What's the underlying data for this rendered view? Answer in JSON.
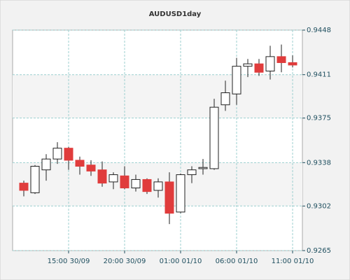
{
  "chart_data": {
    "type": "candlestick",
    "title": "AUDUSD1day",
    "categories": [
      null,
      null,
      null,
      null,
      "15:00 30/09",
      null,
      null,
      null,
      null,
      "20:00 30/09",
      null,
      null,
      null,
      null,
      "01:00 01/10",
      null,
      null,
      null,
      null,
      "06:00 01/10",
      null,
      null,
      null,
      null,
      "11:00 01/10"
    ],
    "open": [
      0.9321,
      0.9313,
      0.9332,
      0.9341,
      0.935,
      0.934,
      0.9336,
      0.9332,
      0.9322,
      0.9327,
      0.9317,
      0.9324,
      0.9315,
      0.9322,
      0.9297,
      0.9328,
      0.9333,
      0.9333,
      0.9386,
      0.9395,
      0.9418,
      0.942,
      0.9414,
      0.9426,
      0.9421
    ],
    "high": [
      0.9323,
      0.9336,
      0.9345,
      0.9355,
      0.9351,
      0.9343,
      0.934,
      0.9339,
      0.933,
      0.9335,
      0.9328,
      0.9325,
      0.9325,
      0.933,
      0.9329,
      0.9335,
      0.9341,
      0.9391,
      0.9406,
      0.9425,
      0.9424,
      0.9424,
      0.9435,
      0.9436,
      0.9427
    ],
    "low": [
      0.931,
      0.9312,
      0.9323,
      0.9337,
      0.9332,
      0.9328,
      0.9327,
      0.9318,
      0.9316,
      0.9316,
      0.9314,
      0.9312,
      0.9309,
      0.9287,
      0.9296,
      0.9321,
      0.9328,
      0.9332,
      0.9381,
      0.9386,
      0.9409,
      0.941,
      0.9407,
      0.9413,
      0.9417
    ],
    "close": [
      0.9315,
      0.9335,
      0.9341,
      0.935,
      0.934,
      0.9335,
      0.9331,
      0.9321,
      0.9328,
      0.9317,
      0.9324,
      0.9314,
      0.9322,
      0.9296,
      0.9328,
      0.9332,
      0.9334,
      0.9384,
      0.9396,
      0.9418,
      0.942,
      0.9413,
      0.9426,
      0.9421,
      0.9419
    ],
    "up_color": "#ffffff",
    "down_color": "#e03c3c",
    "ylim": [
      0.9265,
      0.9448
    ],
    "yticks": [
      0.9265,
      0.9302,
      0.9338,
      0.9375,
      0.9411,
      0.9448
    ],
    "grid": true
  }
}
